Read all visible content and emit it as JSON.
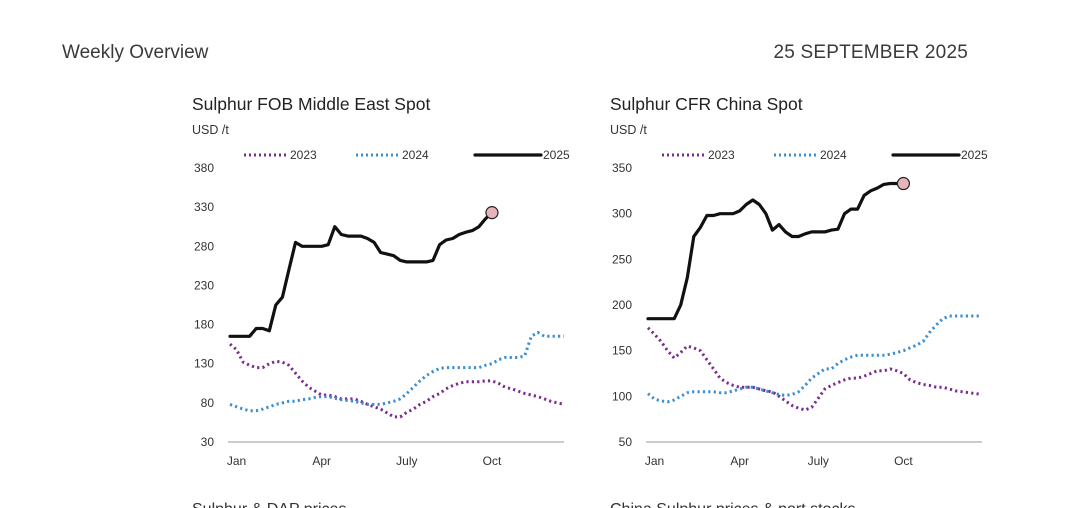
{
  "header": {
    "left_title": "Weekly Overview",
    "date": "25 SEPTEMBER 2025"
  },
  "next_titles": [
    "Sulphur & DAP prices",
    "China Sulphur prices & port stocks"
  ],
  "chart_data": [
    {
      "type": "line",
      "title": "Sulphur FOB Middle East Spot",
      "ylabel": "USD /t",
      "ylim": [
        30,
        380
      ],
      "yticks": [
        30,
        80,
        130,
        180,
        230,
        280,
        330,
        380
      ],
      "xlim": [
        1,
        52
      ],
      "xticks": [
        {
          "label": "Jan",
          "x": 2
        },
        {
          "label": "Apr",
          "x": 15
        },
        {
          "label": "July",
          "x": 28
        },
        {
          "label": "Oct",
          "x": 41
        }
      ],
      "legend": "top",
      "grid": false,
      "series": [
        {
          "name": "2023",
          "style": "dotted",
          "color": "#7b2d8e",
          "x": [
            1,
            2,
            3,
            4,
            5,
            6,
            7,
            8,
            9,
            10,
            11,
            12,
            13,
            14,
            15,
            16,
            17,
            18,
            19,
            20,
            21,
            22,
            23,
            24,
            25,
            26,
            27,
            28,
            29,
            30,
            31,
            32,
            33,
            34,
            35,
            36,
            37,
            38,
            39,
            40,
            41,
            42,
            43,
            44,
            45,
            46,
            47,
            48,
            49,
            50,
            51,
            52
          ],
          "y": [
            155,
            148,
            132,
            128,
            125,
            125,
            130,
            133,
            132,
            128,
            118,
            108,
            100,
            95,
            90,
            90,
            88,
            85,
            85,
            85,
            82,
            78,
            75,
            72,
            67,
            62,
            62,
            68,
            72,
            78,
            82,
            88,
            92,
            98,
            102,
            105,
            107,
            107,
            107,
            108,
            108,
            105,
            100,
            98,
            95,
            92,
            90,
            88,
            85,
            82,
            80,
            78
          ]
        },
        {
          "name": "2024",
          "style": "dotted",
          "color": "#3b8fd0",
          "x": [
            1,
            2,
            3,
            4,
            5,
            6,
            7,
            8,
            9,
            10,
            11,
            12,
            13,
            14,
            15,
            16,
            17,
            18,
            19,
            20,
            21,
            22,
            23,
            24,
            25,
            26,
            27,
            28,
            29,
            30,
            31,
            32,
            33,
            34,
            35,
            36,
            37,
            38,
            39,
            40,
            41,
            42,
            43,
            44,
            45,
            46,
            47,
            48,
            49,
            50,
            51,
            52
          ],
          "y": [
            78,
            75,
            72,
            70,
            70,
            72,
            75,
            78,
            80,
            82,
            82,
            84,
            85,
            87,
            88,
            88,
            86,
            84,
            83,
            82,
            80,
            78,
            78,
            78,
            80,
            82,
            85,
            92,
            100,
            108,
            115,
            120,
            124,
            125,
            125,
            125,
            125,
            125,
            125,
            128,
            130,
            135,
            138,
            138,
            138,
            140,
            165,
            170,
            165,
            165,
            165,
            165
          ]
        },
        {
          "name": "2025",
          "style": "solid",
          "color": "#111111",
          "x": [
            1,
            2,
            3,
            4,
            5,
            6,
            7,
            8,
            9,
            10,
            11,
            12,
            13,
            14,
            15,
            16,
            17,
            18,
            19,
            20,
            21,
            22,
            23,
            24,
            25,
            26,
            27,
            28,
            29,
            30,
            31,
            32,
            33,
            34,
            35,
            36,
            37,
            38,
            39,
            40,
            41
          ],
          "y": [
            165,
            165,
            165,
            165,
            175,
            175,
            172,
            205,
            215,
            250,
            285,
            280,
            280,
            280,
            280,
            282,
            305,
            295,
            293,
            293,
            293,
            290,
            285,
            272,
            270,
            268,
            262,
            260,
            260,
            260,
            260,
            262,
            282,
            288,
            290,
            295,
            298,
            300,
            305,
            315,
            323
          ]
        }
      ],
      "last_point": {
        "x": 41,
        "y": 323
      }
    },
    {
      "type": "line",
      "title": "Sulphur CFR China Spot",
      "ylabel": "USD /t",
      "ylim": [
        50,
        350
      ],
      "yticks": [
        50,
        100,
        150,
        200,
        250,
        300,
        350
      ],
      "xlim": [
        1,
        52
      ],
      "xticks": [
        {
          "label": "Jan",
          "x": 2
        },
        {
          "label": "Apr",
          "x": 15
        },
        {
          "label": "July",
          "x": 27
        },
        {
          "label": "Oct",
          "x": 40
        }
      ],
      "legend": "top",
      "grid": false,
      "series": [
        {
          "name": "2023",
          "style": "dotted",
          "color": "#7b2d8e",
          "x": [
            1,
            2,
            3,
            4,
            5,
            6,
            7,
            8,
            9,
            10,
            11,
            12,
            13,
            14,
            15,
            16,
            17,
            18,
            19,
            20,
            21,
            22,
            23,
            24,
            25,
            26,
            27,
            28,
            29,
            30,
            31,
            32,
            33,
            34,
            35,
            36,
            37,
            38,
            39,
            40,
            41,
            42,
            43,
            44,
            45,
            46,
            47,
            48,
            49,
            50,
            51,
            52
          ],
          "y": [
            175,
            168,
            160,
            150,
            142,
            148,
            155,
            153,
            150,
            140,
            130,
            120,
            115,
            112,
            110,
            110,
            110,
            108,
            106,
            105,
            100,
            95,
            90,
            87,
            85,
            88,
            98,
            108,
            112,
            115,
            118,
            120,
            120,
            122,
            125,
            128,
            128,
            130,
            128,
            125,
            118,
            115,
            113,
            112,
            110,
            110,
            108,
            106,
            105,
            104,
            103,
            102
          ]
        },
        {
          "name": "2024",
          "style": "dotted",
          "color": "#3b8fd0",
          "x": [
            1,
            2,
            3,
            4,
            5,
            6,
            7,
            8,
            9,
            10,
            11,
            12,
            13,
            14,
            15,
            16,
            17,
            18,
            19,
            20,
            21,
            22,
            23,
            24,
            25,
            26,
            27,
            28,
            29,
            30,
            31,
            32,
            33,
            34,
            35,
            36,
            37,
            38,
            39,
            40,
            41,
            42,
            43,
            44,
            45,
            46,
            47,
            48,
            49,
            50,
            51,
            52
          ],
          "y": [
            103,
            97,
            95,
            94,
            96,
            100,
            104,
            105,
            105,
            105,
            105,
            104,
            104,
            106,
            108,
            110,
            110,
            108,
            106,
            104,
            102,
            101,
            102,
            105,
            112,
            120,
            125,
            130,
            130,
            136,
            140,
            143,
            145,
            145,
            145,
            145,
            145,
            146,
            148,
            150,
            153,
            156,
            160,
            170,
            178,
            185,
            188,
            188,
            188,
            188,
            188,
            188
          ]
        },
        {
          "name": "2025",
          "style": "solid",
          "color": "#111111",
          "x": [
            1,
            2,
            3,
            4,
            5,
            6,
            7,
            8,
            9,
            10,
            11,
            12,
            13,
            14,
            15,
            16,
            17,
            18,
            19,
            20,
            21,
            22,
            23,
            24,
            25,
            26,
            27,
            28,
            29,
            30,
            31,
            32,
            33,
            34,
            35,
            36,
            37,
            38,
            39,
            40
          ],
          "y": [
            185,
            185,
            185,
            185,
            185,
            200,
            230,
            275,
            285,
            298,
            298,
            300,
            300,
            300,
            303,
            310,
            315,
            310,
            300,
            282,
            288,
            280,
            275,
            275,
            278,
            280,
            280,
            280,
            282,
            283,
            300,
            305,
            305,
            320,
            325,
            328,
            332,
            333,
            333,
            333
          ]
        }
      ],
      "last_point": {
        "x": 40,
        "y": 333
      }
    }
  ]
}
